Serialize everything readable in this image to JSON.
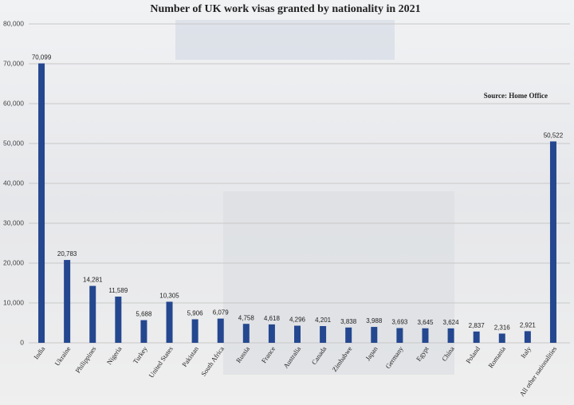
{
  "chart_data": {
    "type": "bar",
    "title": "Number of UK work visas granted by nationality in 2021",
    "annotation": "Source: Home Office",
    "categories": [
      "India",
      "Ukraine",
      "Philippines",
      "Nigeria",
      "Turkey",
      "United States",
      "Pakistan",
      "South Africa",
      "Russia",
      "France",
      "Australia",
      "Canada",
      "Zimbabwe",
      "Japan",
      "Germany",
      "Egypt",
      "China",
      "Poland",
      "Romania",
      "Italy",
      "All other nationalities"
    ],
    "values": [
      70099,
      20783,
      14281,
      11589,
      5688,
      10305,
      5906,
      6079,
      4758,
      4618,
      4296,
      4201,
      3838,
      3988,
      3693,
      3645,
      3624,
      2837,
      2316,
      2921,
      50522
    ],
    "value_labels": [
      "70,099",
      "20,783",
      "14,281",
      "11,589",
      "5,688",
      "10,305",
      "5,906",
      "6,079",
      "4,758",
      "4,618",
      "4,296",
      "4,201",
      "3,838",
      "3,988",
      "3,693",
      "3,645",
      "3,624",
      "2,837",
      "2,316",
      "2,921",
      "50,522"
    ],
    "color": "#24478f",
    "ylim": [
      0,
      80000
    ],
    "yticks": [
      0,
      {
        "value": 10000,
        "label": "10,000"
      },
      {
        "value": 20000,
        "label": "20,000"
      },
      {
        "value": 30000,
        "label": "30,000"
      },
      {
        "value": 40000,
        "label": "40,000"
      },
      {
        "value": 50000,
        "label": "50,000"
      },
      {
        "value": 60000,
        "label": "60,000"
      },
      {
        "value": 70000,
        "label": "70,000"
      },
      {
        "value": 80000,
        "label": "80,000"
      }
    ],
    "grid": true
  }
}
